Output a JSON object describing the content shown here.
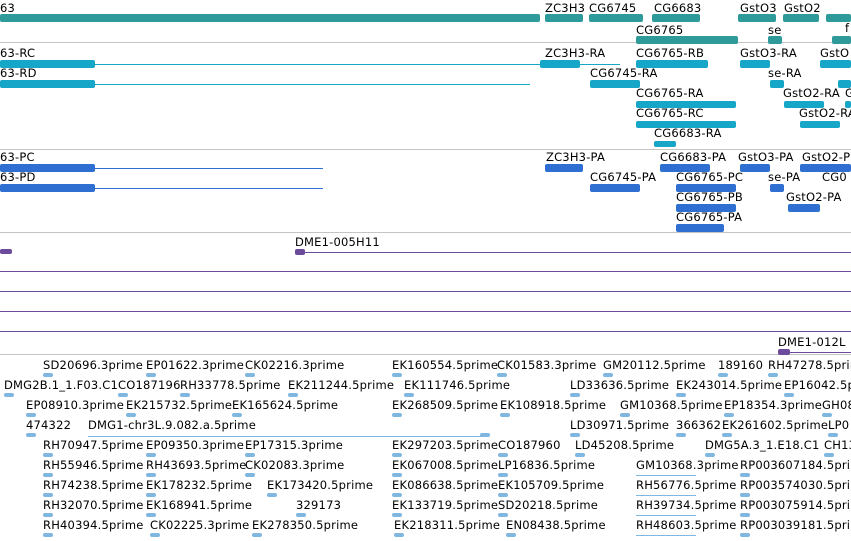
{
  "colors": {
    "gene": "#2f9a9a",
    "transcript": "#16a6c7",
    "protein": "#2f6fd1",
    "bac": "#6c4a9c",
    "est": "#7fb7e0",
    "separator": "#c4c4c4"
  },
  "tracks": {
    "genes": {
      "items": [
        "63",
        "ZC3H3",
        "CG6745",
        "CG6683",
        "GstO3",
        "GstO2",
        "f",
        "CG6765",
        "se"
      ]
    },
    "transcripts": {
      "items": [
        "63-RC",
        "63-RD",
        "ZC3H3-RA",
        "CG6765-RB",
        "GstO3-RA",
        "GstO",
        "CG6745-RA",
        "se-RA",
        "GstO2-RA",
        "G",
        "CG6765-RA",
        "GstO2-RA",
        "CG6765-RC",
        "CG6683-RA"
      ]
    },
    "proteins": {
      "items": [
        "63-PC",
        "63-PD",
        "ZC3H3-PA",
        "CG6683-PA",
        "GstO3-PA",
        "GstO2-P",
        "CG6745-PA",
        "CG6765-PC",
        "se-PA",
        "CG0",
        "CG6765-PB",
        "GstO2-PA",
        "CG6765-PA"
      ]
    },
    "bacs": {
      "items": [
        "DME1-005H11",
        "DME1-012L"
      ]
    },
    "ests": {
      "items": [
        "SD20696.3prime",
        "EP01622.3prime",
        "CK02216.3prime",
        "EK160554.5prime",
        "CK01583.3prime",
        "GM20112.5prime",
        "189160",
        "RH47278.5prime",
        "DMG2B.1_1.F03.C1",
        "CO187196",
        "RH33778.5prime",
        "EK211244.5prime",
        "EK111746.5prime",
        "LD33636.5prime",
        "EK243014.5prime",
        "EP16042.5prime",
        "EP08910.3prime",
        "EK215732.5prime",
        "EK165624.5prime",
        "EK268509.5prime",
        "EK108918.5prime",
        "GM10368.5prime",
        "EP18354.3prime",
        "GH08",
        "474322",
        "DMG1-chr3L.9.082.a.5prime",
        "LD30971.5prime",
        "366362",
        "EK261602.5prime",
        "LP0",
        "RH70947.5prime",
        "EP09350.3prime",
        "EP17315.3prime",
        "EK297203.5prime",
        "CO187960",
        "LD45208.5prime",
        "DMG5A.3_1.E18.C1",
        "CH13",
        "RH55946.5prime",
        "RH43693.5prime",
        "CK02083.3prime",
        "EK067008.5prime",
        "LP16836.5prime",
        "GM10368.3prime",
        "RP003607184.5prime",
        "RH74238.5prime",
        "EK178232.5prime",
        "EK173420.5prime",
        "EK086638.5prime",
        "EK105709.5prime",
        "RH56776.5prime",
        "RP003574030.5prime",
        "RH32070.5prime",
        "EK168941.5prime",
        "329173",
        "EK133719.5prime",
        "SD20218.5prime",
        "RH39734.5prime",
        "RP003075914.5prime",
        "RH40394.5prime",
        "CK02225.3prime",
        "EK278350.5prime",
        "EK218311.5prime",
        "EN08438.5prime",
        "RH48603.5prime",
        "RP003039181.5prime"
      ]
    }
  }
}
